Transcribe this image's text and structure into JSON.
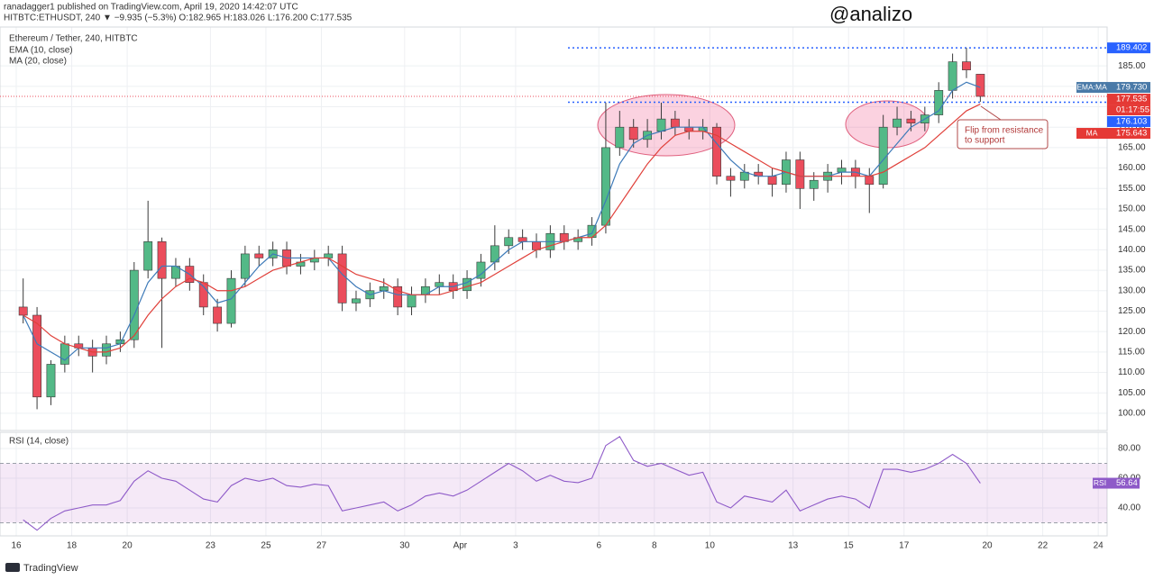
{
  "header": {
    "author_line": "ranadagger1 published on TradingView.com, April 19, 2020 14:42:07 UTC",
    "symbol_line": "HITBTC:ETHUSDT, 240 ▼ −9.935 (−5.3%) O:182.965 H:183.026 L:176.200 C:177.535",
    "watermark": "@analizo"
  },
  "footer": {
    "brand": "TradingView"
  },
  "chart_data": [
    {
      "type": "candlestick",
      "title": "Ethereum / Tether, 240, HITBTC",
      "x": [
        0.25,
        0.75,
        1.25,
        1.75,
        2.25,
        2.75,
        3.25,
        3.75,
        4.25,
        4.75,
        5.25,
        5.75,
        6.25,
        6.75,
        7.25,
        7.75,
        8.25,
        8.75,
        9.25,
        9.75,
        10.25,
        10.75,
        11.25,
        11.75,
        12.25,
        12.75,
        13.25,
        13.75,
        14.25,
        14.75,
        15.25,
        15.75,
        16.25,
        16.75,
        17.25,
        17.75,
        18.25,
        18.75,
        19.25,
        19.75,
        20.25,
        20.75,
        21.25,
        21.75,
        22.25,
        22.75,
        23.25,
        23.75,
        24.25,
        24.75,
        25.25,
        25.75,
        26.25,
        26.75,
        27.25,
        27.75,
        28.25,
        28.75,
        29.25,
        29.75,
        30.25,
        30.75,
        31.25,
        31.75,
        32.25,
        32.75,
        33.25,
        33.75,
        34.25,
        34.75
      ],
      "open": [
        126,
        124,
        104,
        112,
        117,
        116,
        114,
        117,
        118,
        135,
        142,
        133,
        136,
        132,
        126,
        122,
        133,
        139,
        138,
        140,
        136,
        137,
        138,
        139,
        127,
        128,
        130,
        131,
        126,
        129,
        131,
        132,
        130,
        133,
        137,
        141,
        143,
        142,
        140,
        144,
        142,
        143,
        146,
        165,
        170,
        167,
        169,
        172,
        170,
        169,
        170,
        158,
        157,
        159,
        158,
        156,
        162,
        155,
        157,
        159,
        160,
        158,
        156,
        170,
        172,
        171,
        173,
        179,
        186,
        182.965
      ],
      "high": [
        133,
        126,
        113,
        119,
        119,
        118,
        119,
        120,
        137,
        152,
        143,
        138,
        138,
        134,
        128,
        135,
        141,
        141,
        142,
        142,
        139,
        140,
        141,
        141,
        130,
        132,
        133,
        133,
        131,
        133,
        134,
        134,
        135,
        139,
        146,
        145,
        145,
        144,
        146,
        146,
        145,
        148,
        176,
        174,
        172,
        172,
        176,
        174,
        172,
        172,
        171,
        160,
        161,
        161,
        160,
        164,
        164,
        159,
        161,
        162,
        162,
        160,
        173,
        175,
        174,
        175,
        181,
        188,
        189.402,
        183.026
      ],
      "low": [
        122,
        101,
        102,
        110,
        114,
        110,
        112,
        115,
        116,
        133,
        116,
        131,
        130,
        124,
        120,
        121,
        131,
        136,
        136,
        134,
        134,
        135,
        136,
        125,
        125,
        126,
        128,
        124,
        124,
        127,
        129,
        128,
        128,
        131,
        135,
        139,
        140,
        138,
        138,
        140,
        140,
        141,
        144,
        163,
        165,
        165,
        167,
        168,
        167,
        167,
        156,
        153,
        155,
        156,
        153,
        154,
        150,
        152,
        154,
        156,
        155,
        149,
        155,
        168,
        169,
        169,
        171,
        177,
        182,
        176.2
      ],
      "close": [
        124,
        104,
        112,
        117,
        116,
        114,
        117,
        118,
        135,
        142,
        133,
        136,
        132,
        126,
        122,
        133,
        139,
        138,
        140,
        136,
        137,
        138,
        139,
        127,
        128,
        130,
        131,
        126,
        129,
        131,
        132,
        130,
        133,
        137,
        141,
        143,
        142,
        140,
        144,
        142,
        143,
        146,
        165,
        170,
        167,
        169,
        172,
        170,
        169,
        170,
        158,
        157,
        159,
        158,
        156,
        162,
        155,
        157,
        159,
        160,
        158,
        156,
        170,
        172,
        171,
        173,
        179,
        186,
        184,
        177.535
      ],
      "up_color": "#53b987",
      "down_color": "#eb4d5c",
      "series": [
        {
          "name": "EMA (10, close)",
          "color": "#3d7ab8",
          "values": [
            124,
            117,
            115,
            113,
            116,
            116,
            116,
            117,
            124,
            132,
            136,
            136,
            134,
            131,
            127,
            128,
            132,
            136,
            139,
            138,
            138,
            138,
            138,
            134,
            131,
            129,
            130,
            129,
            129,
            129,
            131,
            131,
            132,
            134,
            137,
            140,
            142,
            142,
            142,
            142,
            143,
            144,
            152,
            161,
            166,
            168,
            169,
            170,
            170,
            170,
            166,
            162,
            159,
            158,
            158,
            159,
            158,
            158,
            158,
            159,
            159,
            158,
            162,
            166,
            170,
            172,
            174,
            179,
            181,
            179.73
          ]
        },
        {
          "name": "MA (20, close)",
          "color": "#e0403a",
          "values": [
            124,
            122,
            119,
            117,
            116,
            115,
            115,
            116,
            119,
            124,
            128,
            131,
            133,
            132,
            130,
            130,
            131,
            133,
            135,
            136,
            137,
            138,
            138,
            136,
            134,
            133,
            132,
            130,
            129,
            129,
            129,
            130,
            131,
            132,
            134,
            136,
            138,
            140,
            141,
            142,
            143,
            143,
            146,
            151,
            156,
            161,
            165,
            168,
            169,
            169,
            168,
            166,
            164,
            162,
            160,
            159,
            158,
            158,
            158,
            158,
            158,
            158,
            159,
            161,
            163,
            165,
            168,
            171,
            174,
            175.643
          ]
        }
      ],
      "xlim": [
        -0.585,
        39.32
      ],
      "xticks": [
        {
          "value": 0,
          "label": "16"
        },
        {
          "value": 2,
          "label": "18"
        },
        {
          "value": 4,
          "label": "20"
        },
        {
          "value": 7,
          "label": "23"
        },
        {
          "value": 9,
          "label": "25"
        },
        {
          "value": 11,
          "label": "27"
        },
        {
          "value": 14,
          "label": "30"
        },
        {
          "value": 16,
          "label": "Apr"
        },
        {
          "value": 18,
          "label": "3"
        },
        {
          "value": 21,
          "label": "6"
        },
        {
          "value": 23,
          "label": "8"
        },
        {
          "value": 25,
          "label": "10"
        },
        {
          "value": 28,
          "label": "13"
        },
        {
          "value": 30,
          "label": "15"
        },
        {
          "value": 32,
          "label": "17"
        },
        {
          "value": 35,
          "label": "20"
        },
        {
          "value": 37,
          "label": "22"
        },
        {
          "value": 39,
          "label": "24"
        }
      ],
      "ylim": [
        95.8,
        194.5
      ],
      "yticks": [
        {
          "value": 100,
          "label": "100.00"
        },
        {
          "value": 105,
          "label": "105.00"
        },
        {
          "value": 110,
          "label": "110.00"
        },
        {
          "value": 115,
          "label": "115.00"
        },
        {
          "value": 120,
          "label": "120.00"
        },
        {
          "value": 125,
          "label": "125.00"
        },
        {
          "value": 130,
          "label": "130.00"
        },
        {
          "value": 135,
          "label": "135.00"
        },
        {
          "value": 140,
          "label": "140.00"
        },
        {
          "value": 145,
          "label": "145.00"
        },
        {
          "value": 150,
          "label": "150.00"
        },
        {
          "value": 155,
          "label": "155.00"
        },
        {
          "value": 160,
          "label": "160.00"
        },
        {
          "value": 165,
          "label": "165.00"
        },
        {
          "value": 170,
          "label": "170.00"
        },
        {
          "value": 175,
          "label": "175.00"
        },
        {
          "value": 180,
          "label": "180.00"
        },
        {
          "value": 185,
          "label": "185.00"
        }
      ],
      "grid": true,
      "hlines": [
        {
          "value": 189.402,
          "color": "#2962ff"
        },
        {
          "value": 176.103,
          "color": "#2962ff"
        }
      ],
      "price_labels": [
        {
          "value": 189.402,
          "color": "#2962ff"
        },
        {
          "tag": "EMA:MA",
          "value": 179.73,
          "value_label": "179.730",
          "color": "#4a7aa8"
        },
        {
          "value": 177.535,
          "color": "#e53935",
          "countdown": "01:17:55"
        },
        {
          "value": 176.103,
          "color": "#2962ff"
        },
        {
          "tag": "MA",
          "value": 175.643,
          "color": "#e53935"
        }
      ],
      "annotation": [
        "Flip from resistance",
        "to support"
      ]
    },
    {
      "type": "line",
      "title": "RSI (14, close)",
      "series": [
        {
          "name": "RSI",
          "color": "#8e5ac8",
          "values": [
            32,
            25,
            33,
            38,
            40,
            42,
            42,
            45,
            58,
            65,
            60,
            58,
            52,
            46,
            44,
            55,
            60,
            58,
            60,
            55,
            54,
            56,
            55,
            38,
            40,
            42,
            44,
            38,
            42,
            48,
            50,
            48,
            52,
            58,
            64,
            70,
            65,
            58,
            62,
            58,
            57,
            60,
            82,
            88,
            72,
            68,
            70,
            66,
            62,
            64,
            44,
            40,
            48,
            46,
            44,
            52,
            38,
            42,
            46,
            48,
            46,
            40,
            66,
            66,
            64,
            66,
            70,
            76,
            70,
            56.64
          ]
        }
      ],
      "band": [
        30,
        70
      ],
      "band_color": "#9c27b0",
      "ylim": [
        21.2,
        90.9
      ],
      "yticks": [
        {
          "value": 40,
          "label": "40.00"
        },
        {
          "value": 60,
          "label": "60.00"
        },
        {
          "value": 80,
          "label": "80.00"
        }
      ]
    }
  ]
}
